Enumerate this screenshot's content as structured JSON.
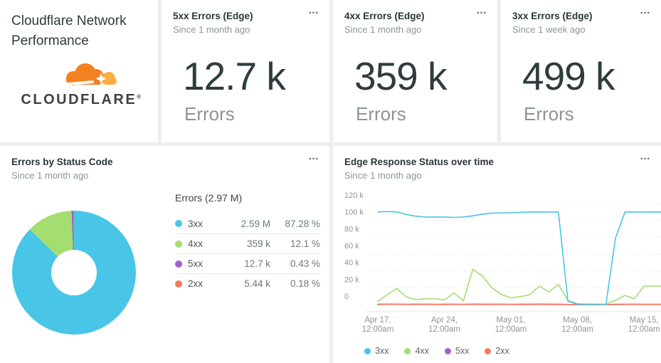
{
  "title_card": {
    "title": "Cloudflare Network Performance",
    "logo_text": "CLOUDFLARE",
    "logo_reg_mark": "®"
  },
  "icons": {
    "ellipsis": "…"
  },
  "colors": {
    "3xx": "#49c5e7",
    "4xx": "#a4dd70",
    "5xx": "#a45fc8",
    "2xx": "#f4795b",
    "logo_orange": "#f48120",
    "logo_orange_light": "#faad40",
    "grid_dot": "#d9dddd",
    "axis_line": "#dfe3e3",
    "tick_text": "#8e9595"
  },
  "stat_cards": [
    {
      "title": "5xx Errors (Edge)",
      "subtitle": "Since 1 month ago",
      "value": "12.7 k",
      "unit": "Errors"
    },
    {
      "title": "4xx Errors (Edge)",
      "subtitle": "Since 1 month ago",
      "value": "359 k",
      "unit": "Errors"
    },
    {
      "title": "3xx Errors (Edge)",
      "subtitle": "Since 1 week ago",
      "value": "499 k",
      "unit": "Errors"
    }
  ],
  "chart_data": [
    {
      "type": "pie",
      "title": "Errors by Status Code",
      "subtitle": "Since 1 month ago",
      "legend_title": "Errors (2.97 M)",
      "total_label": "2.97 M",
      "donut": true,
      "legend_position": "right",
      "slices": [
        {
          "label": "3xx",
          "value": "2.59 M",
          "pct": 87.28,
          "pct_label": "87.28 %"
        },
        {
          "label": "4xx",
          "value": "359 k",
          "pct": 12.1,
          "pct_label": "12.1 %"
        },
        {
          "label": "5xx",
          "value": "12.7 k",
          "pct": 0.43,
          "pct_label": "0.43 %"
        },
        {
          "label": "2xx",
          "value": "5.44 k",
          "pct": 0.18,
          "pct_label": "0.18 %"
        }
      ]
    },
    {
      "type": "line",
      "title": "Edge Response Status over time",
      "subtitle": "Since 1 month ago",
      "grid": "dotted horizontal",
      "legend_position": "bottom",
      "legend": [
        "3xx",
        "4xx",
        "5xx",
        "2xx"
      ],
      "ylim_thousands": [
        0,
        120
      ],
      "y_tick_labels": [
        "120 k",
        "100 k",
        "80 k",
        "60 k",
        "40 k",
        "20 k",
        "0"
      ],
      "x_tick_days": [
        0,
        7,
        14,
        21,
        28
      ],
      "x_tick_labels": [
        [
          "Apr 17,",
          "12:00am"
        ],
        [
          "Apr 24,",
          "12:00am"
        ],
        [
          "May 01,",
          "12:00am"
        ],
        [
          "May 08,",
          "12:00am"
        ],
        [
          "May 15,",
          "12:00am"
        ]
      ],
      "values_unit": "thousands (k), one point per day from Apr 17 to May 15",
      "series": [
        {
          "name": "3xx",
          "values_k": [
            110,
            110.5,
            110,
            107,
            105,
            104,
            104,
            104,
            103.5,
            104,
            105.5,
            107.5,
            108.5,
            109,
            109,
            109.5,
            110,
            110,
            110,
            110,
            4,
            0.6,
            0.5,
            0.4,
            0.3,
            79,
            110,
            110,
            110
          ]
        },
        {
          "name": "4xx",
          "values_k": [
            4,
            12,
            19,
            9,
            6,
            7,
            7,
            5.5,
            14,
            4.5,
            42,
            34,
            20,
            12,
            8,
            9.5,
            12,
            22,
            15,
            24,
            5,
            1,
            0.5,
            0.5,
            0.5,
            5,
            11,
            7,
            22
          ]
        },
        {
          "name": "5xx",
          "values_k": [
            0.5,
            0.6,
            0.5,
            0.4,
            0.5,
            0.5,
            0.4,
            0.5,
            0.5,
            0.4,
            0.6,
            0.5,
            0.5,
            0.5,
            0.4,
            0.5,
            0.5,
            0.6,
            0.5,
            0.5,
            0.2,
            0.1,
            0.1,
            0.1,
            0.1,
            0.3,
            0.4,
            0.5,
            0.4
          ]
        },
        {
          "name": "2xx",
          "values_k": [
            0.2,
            0.5,
            0.35,
            0.2,
            0.2,
            0.25,
            0.2,
            0.2,
            0.3,
            0.2,
            0.25,
            0.2,
            0.2,
            0.25,
            0.2,
            0.15,
            0.2,
            0.25,
            0.2,
            0.2,
            0.15,
            0.05,
            0.05,
            0.05,
            0.05,
            0.1,
            0.15,
            0.25,
            0.15
          ]
        }
      ]
    }
  ]
}
